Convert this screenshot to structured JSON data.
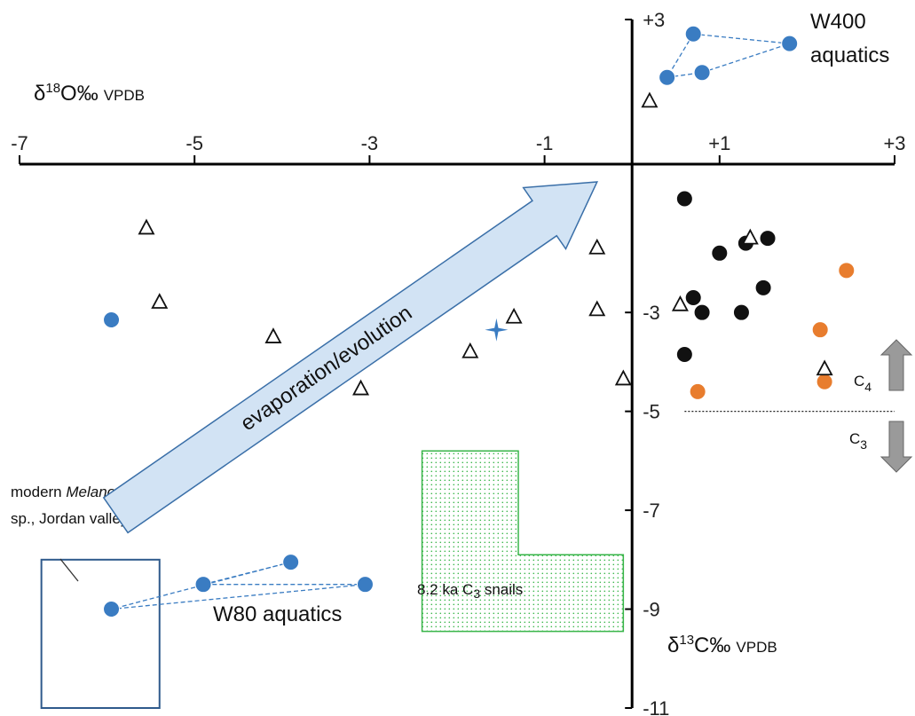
{
  "chart_data": {
    "type": "scatter",
    "x_axis": {
      "quantity": "δ18O",
      "label_main": "δ",
      "label_sup": "18",
      "label_rest": "O‰",
      "label_unit": "VPDB",
      "range": [
        -7,
        3
      ],
      "ticks": [
        -7,
        -5,
        -3,
        -1,
        1,
        3
      ],
      "tick_labels": [
        "-7",
        "-5",
        "-3",
        "-1",
        "+1",
        "+3"
      ]
    },
    "y_axis": {
      "quantity": "δ13C",
      "label_main": "δ",
      "label_sup": "13",
      "label_rest": "C‰",
      "label_unit": "VPDB",
      "range": [
        -11,
        3
      ],
      "ticks": [
        3,
        -3,
        -5,
        -7,
        -9,
        -11
      ],
      "tick_labels": [
        "+3",
        "-3",
        "-5",
        "-7",
        "-9",
        "-11"
      ]
    },
    "series": [
      {
        "marker": "circle",
        "color": "#3a7cc2",
        "points": [
          [
            0.7,
            2.7
          ],
          [
            1.8,
            2.5
          ],
          [
            0.8,
            1.9
          ],
          [
            0.4,
            1.8
          ]
        ],
        "linked": true
      },
      {
        "marker": "circle",
        "color": "#3a7cc2",
        "points": [
          [
            -3.9,
            -8.05
          ],
          [
            -4.9,
            -8.5
          ],
          [
            -3.05,
            -8.5
          ],
          [
            -5.95,
            -9.0
          ]
        ],
        "linked": true
      },
      {
        "marker": "circle",
        "color": "#3a7cc2",
        "points": [
          [
            -5.95,
            -3.15
          ]
        ]
      },
      {
        "marker": "circle",
        "color": "#111111",
        "points": [
          [
            0.6,
            -0.7
          ],
          [
            1.0,
            -1.8
          ],
          [
            1.3,
            -1.6
          ],
          [
            1.55,
            -1.5
          ],
          [
            1.5,
            -2.5
          ],
          [
            0.7,
            -2.7
          ],
          [
            0.8,
            -3.0
          ],
          [
            1.25,
            -3.0
          ],
          [
            0.6,
            -3.85
          ]
        ]
      },
      {
        "marker": "circle",
        "color": "#e87d2e",
        "points": [
          [
            2.45,
            -2.15
          ],
          [
            2.15,
            -3.35
          ],
          [
            2.2,
            -4.4
          ],
          [
            0.75,
            -4.6
          ]
        ]
      },
      {
        "marker": "triangle",
        "color": "#111111",
        "points": [
          [
            0.2,
            1.3
          ],
          [
            -5.55,
            -1.3
          ],
          [
            -5.4,
            -2.8
          ],
          [
            -4.1,
            -3.5
          ],
          [
            -3.1,
            -4.55
          ],
          [
            -1.85,
            -3.8
          ],
          [
            -1.35,
            -3.1
          ],
          [
            -0.4,
            -1.7
          ],
          [
            -0.4,
            -2.95
          ],
          [
            -0.1,
            -4.35
          ],
          [
            0.55,
            -2.85
          ],
          [
            1.35,
            -1.5
          ],
          [
            2.2,
            -4.15
          ]
        ]
      },
      {
        "marker": "star",
        "color": "#3a7cc2",
        "points": [
          [
            -1.55,
            -3.35
          ]
        ]
      }
    ],
    "group_labels": {
      "w400_line1": "W400",
      "w400_line2": "aquatics",
      "w80": "W80 aquatics"
    },
    "annotations": {
      "arrow_label": "evaporation/evolution",
      "melanopsis_line1_pre": "modern ",
      "melanopsis_line1_italic": "Melanopsis",
      "melanopsis_line2": "sp., Jordan valley",
      "snails_pre": "8.2 ka C",
      "snails_sub": "3",
      "snails_post": " snails",
      "c4_main": "C",
      "c4_sub": "4",
      "c3_main": "C",
      "c3_sub": "3"
    },
    "threshold_line": {
      "y": -5,
      "x_from": 0.6,
      "x_to": 3,
      "style": "dotted"
    },
    "snail_region": [
      [
        -2.4,
        -5.8
      ],
      [
        -2.4,
        -9.45
      ],
      [
        -0.1,
        -9.45
      ],
      [
        -0.1,
        -7.9
      ],
      [
        -1.3,
        -7.9
      ],
      [
        -1.3,
        -5.8
      ]
    ],
    "melanopsis_box": {
      "x": [
        -6.75,
        -5.4
      ],
      "y": [
        -8.0,
        -11.0
      ]
    },
    "arrow": {
      "from": [
        -5.9,
        -7.1
      ],
      "to": [
        -0.4,
        0.0
      ]
    },
    "colors": {
      "blue": "#3a7cc2",
      "black": "#111111",
      "orange": "#e87d2e",
      "arrow_fill": "#d2e3f4",
      "arrow_edge": "#3a6fa8",
      "green": "#39b54a",
      "box": "#2f5a8c",
      "gray_arrow": "#9a9a9a"
    },
    "grid": false,
    "legend": "none"
  }
}
